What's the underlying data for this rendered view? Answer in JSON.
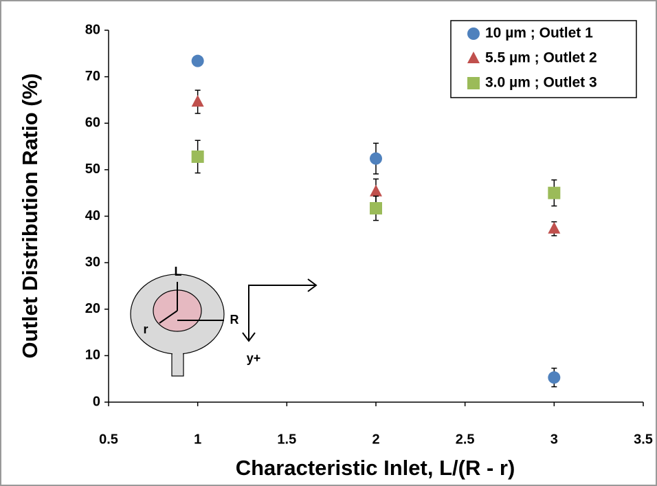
{
  "chart_data": {
    "type": "scatter",
    "x_label": "Characteristic Inlet, L/(R - r)",
    "y_label": "Outlet Distribution Ratio  (%)",
    "xlim": [
      0.5,
      3.5
    ],
    "xticks": [
      0.5,
      1,
      1.5,
      2,
      2.5,
      3,
      3.5
    ],
    "ylim": [
      0,
      80
    ],
    "yticks": [
      0,
      10,
      20,
      30,
      40,
      50,
      60,
      70,
      80
    ],
    "legend": "top-right",
    "series": [
      {
        "name": "10 µm ; Outlet 1",
        "color": "#4f81bd",
        "marker": "circle",
        "x": [
          1,
          2,
          3
        ],
        "values": [
          73.4,
          52.4,
          5.3
        ],
        "errors": [
          1,
          3.3,
          2
        ]
      },
      {
        "name": "5.5 µm ; Outlet 2",
        "color": "#c0504d",
        "marker": "triangle",
        "x": [
          1,
          2,
          3
        ],
        "values": [
          64.6,
          45.3,
          37.3
        ],
        "errors": [
          2.5,
          2.7,
          1.5
        ]
      },
      {
        "name": "3.0 µm ; Outlet 3",
        "color": "#9bbb59",
        "marker": "square",
        "x": [
          1,
          2,
          3
        ],
        "values": [
          52.8,
          41.7,
          45.0
        ],
        "errors": [
          3.5,
          2.6,
          2.8
        ]
      }
    ]
  },
  "inset": {
    "labels": [
      "L",
      "r",
      "R",
      "y+"
    ]
  }
}
